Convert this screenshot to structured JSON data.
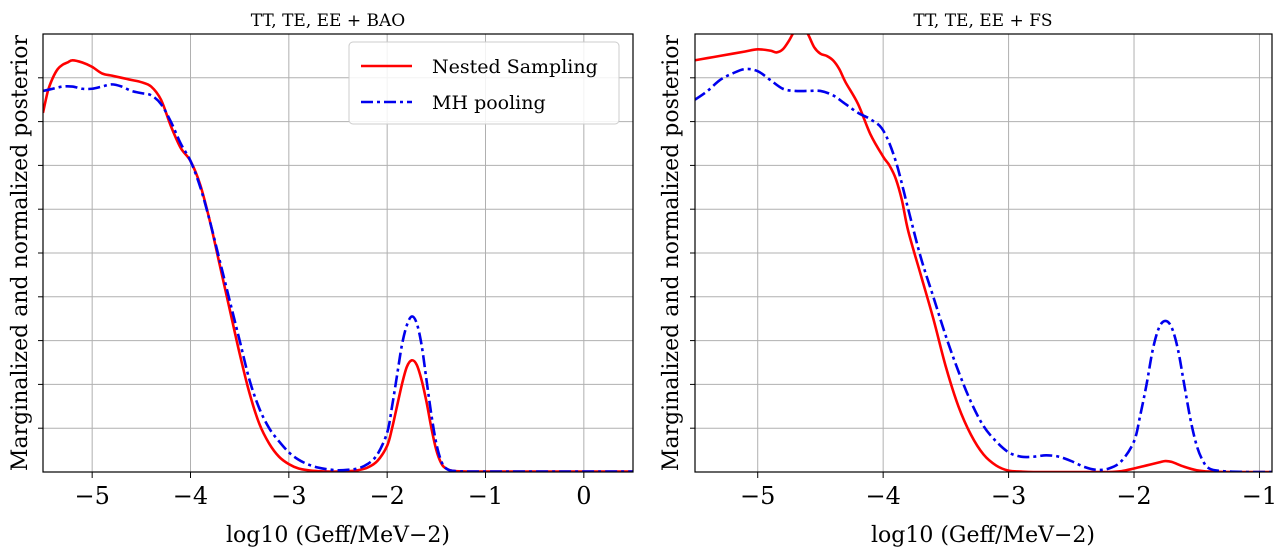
{
  "chart_data": [
    {
      "type": "line",
      "title": "TT, TE, EE + BAO",
      "xlabel": "log10 (Geff/MeV−2)",
      "ylabel": "Marginalized and normalized posterior",
      "xlim": [
        -5.5,
        0.5
      ],
      "ylim": [
        0,
        1.0
      ],
      "xticks": [
        -5,
        -4,
        -3,
        -2,
        -1,
        0
      ],
      "xtick_labels": [
        "−5",
        "−4",
        "−3",
        "−2",
        "−1",
        "0"
      ],
      "yticks": [
        0.1,
        0.2,
        0.3,
        0.4,
        0.5,
        0.6,
        0.7,
        0.8,
        0.9
      ],
      "grid": true,
      "legend": {
        "placement": "top-right",
        "entries": [
          "Nested Sampling",
          "MH pooling"
        ]
      },
      "series": [
        {
          "name": "Nested Sampling",
          "color": "#ff0000",
          "style": "solid",
          "x": [
            -5.5,
            -5.45,
            -5.4,
            -5.35,
            -5.3,
            -5.25,
            -5.2,
            -5.1,
            -5.0,
            -4.9,
            -4.8,
            -4.7,
            -4.6,
            -4.5,
            -4.4,
            -4.3,
            -4.2,
            -4.1,
            -4.0,
            -3.9,
            -3.8,
            -3.7,
            -3.6,
            -3.5,
            -3.4,
            -3.3,
            -3.2,
            -3.1,
            -3.0,
            -2.9,
            -2.8,
            -2.7,
            -2.6,
            -2.5,
            -2.4,
            -2.3,
            -2.2,
            -2.1,
            -2.0,
            -1.95,
            -1.9,
            -1.85,
            -1.8,
            -1.75,
            -1.7,
            -1.65,
            -1.6,
            -1.55,
            -1.5,
            -1.45,
            -1.4,
            -1.3,
            -1.0,
            0.0,
            0.5
          ],
          "y": [
            0.82,
            0.87,
            0.9,
            0.92,
            0.93,
            0.935,
            0.94,
            0.935,
            0.925,
            0.91,
            0.905,
            0.9,
            0.895,
            0.89,
            0.88,
            0.85,
            0.79,
            0.74,
            0.71,
            0.655,
            0.57,
            0.47,
            0.37,
            0.27,
            0.18,
            0.11,
            0.065,
            0.035,
            0.018,
            0.008,
            0.004,
            0.002,
            0.001,
            0.001,
            0.002,
            0.004,
            0.01,
            0.025,
            0.06,
            0.1,
            0.15,
            0.2,
            0.24,
            0.255,
            0.245,
            0.21,
            0.16,
            0.1,
            0.05,
            0.02,
            0.008,
            0.002,
            0.001,
            0.001,
            0.001
          ]
        },
        {
          "name": "MH pooling",
          "color": "#0000ee",
          "style": "dashdot",
          "x": [
            -5.5,
            -5.4,
            -5.3,
            -5.2,
            -5.1,
            -5.0,
            -4.9,
            -4.8,
            -4.7,
            -4.6,
            -4.5,
            -4.4,
            -4.3,
            -4.2,
            -4.1,
            -4.0,
            -3.9,
            -3.8,
            -3.7,
            -3.6,
            -3.5,
            -3.4,
            -3.3,
            -3.2,
            -3.1,
            -3.0,
            -2.9,
            -2.8,
            -2.7,
            -2.6,
            -2.5,
            -2.4,
            -2.3,
            -2.2,
            -2.1,
            -2.0,
            -1.95,
            -1.9,
            -1.85,
            -1.8,
            -1.75,
            -1.7,
            -1.65,
            -1.6,
            -1.55,
            -1.5,
            -1.45,
            -1.4,
            -1.3,
            -1.0,
            0.0,
            0.5
          ],
          "y": [
            0.87,
            0.875,
            0.88,
            0.88,
            0.875,
            0.875,
            0.88,
            0.885,
            0.88,
            0.87,
            0.865,
            0.86,
            0.84,
            0.8,
            0.75,
            0.71,
            0.65,
            0.57,
            0.48,
            0.39,
            0.3,
            0.21,
            0.145,
            0.1,
            0.07,
            0.045,
            0.028,
            0.017,
            0.01,
            0.006,
            0.004,
            0.005,
            0.008,
            0.018,
            0.04,
            0.09,
            0.15,
            0.22,
            0.29,
            0.335,
            0.355,
            0.34,
            0.29,
            0.21,
            0.13,
            0.065,
            0.025,
            0.008,
            0.002,
            0.001,
            0.001,
            0.001
          ]
        }
      ]
    },
    {
      "type": "line",
      "title": "TT, TE, EE + FS",
      "xlabel": "log10 (Geff/MeV−2)",
      "ylabel": "Marginalized and normalized posterior",
      "xlim": [
        -5.5,
        -0.9
      ],
      "ylim": [
        0,
        1.0
      ],
      "xticks": [
        -5,
        -4,
        -3,
        -2,
        -1
      ],
      "xtick_labels": [
        "−5",
        "−4",
        "−3",
        "−2",
        "−1"
      ],
      "yticks": [
        0.1,
        0.2,
        0.3,
        0.4,
        0.5,
        0.6,
        0.7,
        0.8,
        0.9
      ],
      "grid": true,
      "series": [
        {
          "name": "Nested Sampling",
          "color": "#ff0000",
          "style": "solid",
          "x": [
            -5.5,
            -5.4,
            -5.3,
            -5.2,
            -5.1,
            -5.0,
            -4.9,
            -4.85,
            -4.8,
            -4.75,
            -4.7,
            -4.65,
            -4.6,
            -4.55,
            -4.5,
            -4.45,
            -4.4,
            -4.35,
            -4.3,
            -4.2,
            -4.1,
            -4.0,
            -3.95,
            -3.9,
            -3.85,
            -3.8,
            -3.7,
            -3.6,
            -3.5,
            -3.4,
            -3.3,
            -3.2,
            -3.1,
            -3.0,
            -2.9,
            -2.8,
            -2.6,
            -2.4,
            -2.2,
            -2.1,
            -2.0,
            -1.9,
            -1.8,
            -1.75,
            -1.7,
            -1.6,
            -1.5,
            -1.4,
            -1.2,
            -0.9
          ],
          "y": [
            0.94,
            0.945,
            0.95,
            0.955,
            0.96,
            0.965,
            0.962,
            0.958,
            0.965,
            0.985,
            1.01,
            1.02,
            1.0,
            0.97,
            0.955,
            0.95,
            0.94,
            0.92,
            0.89,
            0.84,
            0.77,
            0.72,
            0.7,
            0.67,
            0.62,
            0.55,
            0.45,
            0.35,
            0.24,
            0.15,
            0.085,
            0.04,
            0.015,
            0.003,
            0.001,
            0.0,
            0.0,
            0.0,
            0.0,
            0.002,
            0.008,
            0.015,
            0.022,
            0.025,
            0.023,
            0.012,
            0.004,
            0.001,
            0.0,
            0.0
          ]
        },
        {
          "name": "MH pooling",
          "color": "#0000ee",
          "style": "dashdot",
          "x": [
            -5.5,
            -5.4,
            -5.3,
            -5.2,
            -5.1,
            -5.0,
            -4.9,
            -4.8,
            -4.7,
            -4.6,
            -4.5,
            -4.4,
            -4.3,
            -4.2,
            -4.1,
            -4.0,
            -3.9,
            -3.8,
            -3.7,
            -3.6,
            -3.5,
            -3.4,
            -3.3,
            -3.2,
            -3.1,
            -3.0,
            -2.9,
            -2.8,
            -2.7,
            -2.6,
            -2.5,
            -2.4,
            -2.3,
            -2.2,
            -2.1,
            -2.0,
            -1.95,
            -1.9,
            -1.85,
            -1.8,
            -1.75,
            -1.7,
            -1.65,
            -1.6,
            -1.55,
            -1.5,
            -1.45,
            -1.4,
            -1.3,
            -1.1,
            -0.9
          ],
          "y": [
            0.85,
            0.87,
            0.895,
            0.91,
            0.92,
            0.915,
            0.895,
            0.875,
            0.87,
            0.87,
            0.87,
            0.86,
            0.84,
            0.82,
            0.805,
            0.78,
            0.71,
            0.6,
            0.49,
            0.4,
            0.31,
            0.23,
            0.16,
            0.105,
            0.07,
            0.045,
            0.035,
            0.035,
            0.038,
            0.035,
            0.025,
            0.012,
            0.005,
            0.008,
            0.025,
            0.07,
            0.13,
            0.2,
            0.28,
            0.33,
            0.345,
            0.33,
            0.28,
            0.2,
            0.12,
            0.06,
            0.025,
            0.008,
            0.002,
            0.0,
            0.0
          ]
        }
      ]
    }
  ]
}
